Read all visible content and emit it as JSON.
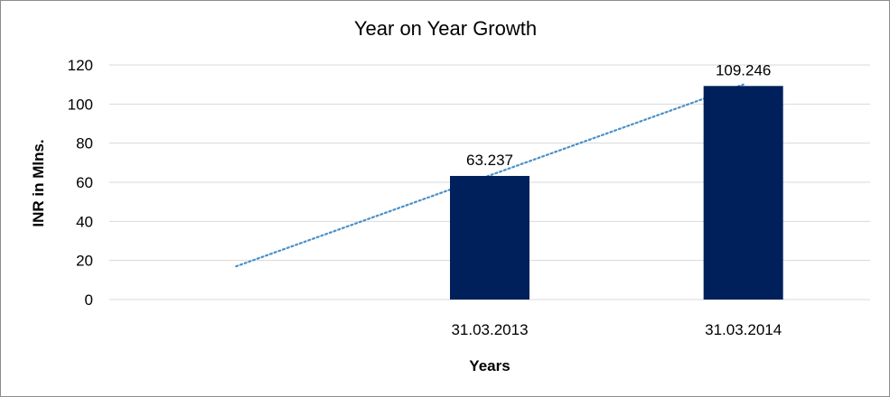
{
  "chart_data": {
    "type": "bar",
    "title": "Year on Year Growth",
    "xlabel": "Years",
    "ylabel": "INR in Mlns.",
    "categories": [
      "",
      "31.03.2013",
      "31.03.2014"
    ],
    "values": [
      null,
      63.237,
      109.246
    ],
    "data_labels": [
      "",
      "63.237",
      "109.246"
    ],
    "y_ticks": [
      0,
      20,
      40,
      60,
      80,
      100,
      120
    ],
    "ylim": [
      0,
      120
    ],
    "grid": true,
    "legend": "none",
    "trendline": {
      "type": "linear",
      "style": "dotted",
      "start": [
        0,
        17
      ],
      "end": [
        2,
        110
      ]
    },
    "colors": {
      "bar": "#00205b",
      "trendline": "#4a90c8",
      "grid": "#d9d9d9",
      "frame": "#8c8c8c"
    }
  }
}
